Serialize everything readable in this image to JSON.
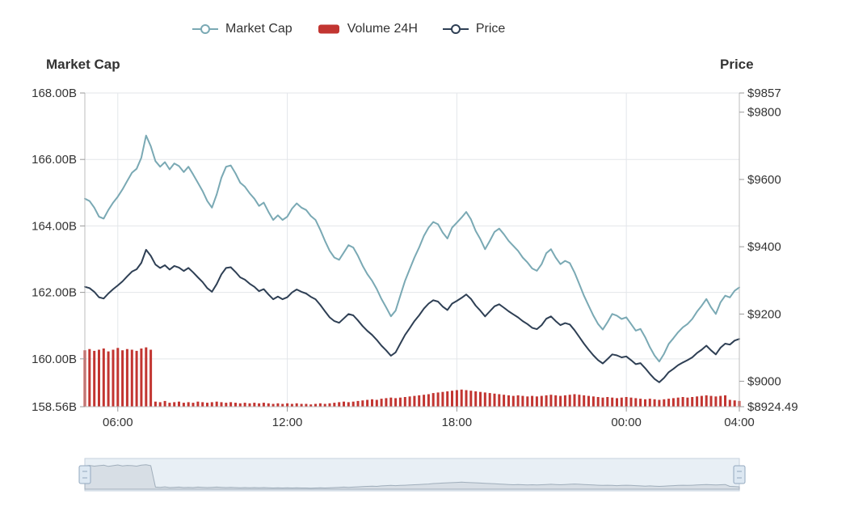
{
  "chart_data": {
    "type": "mixed",
    "x_start_hour": 4.8333,
    "x_step_hours": 0.1666667,
    "x_ticks": [
      {
        "label": "06:00",
        "hour": 6
      },
      {
        "label": "12:00",
        "hour": 12
      },
      {
        "label": "18:00",
        "hour": 18
      },
      {
        "label": "00:00",
        "hour": 24
      },
      {
        "label": "04:00",
        "hour": 28
      }
    ],
    "left_axis": {
      "title": "Market Cap",
      "range": [
        158.56,
        168.0
      ],
      "ticks": [
        {
          "label": "168.00B",
          "value": 168.0
        },
        {
          "label": "166.00B",
          "value": 166.0
        },
        {
          "label": "164.00B",
          "value": 164.0
        },
        {
          "label": "162.00B",
          "value": 162.0
        },
        {
          "label": "160.00B",
          "value": 160.0
        },
        {
          "label": "158.56B",
          "value": 158.56
        }
      ]
    },
    "right_axis": {
      "title": "Price",
      "range": [
        8924.49,
        9857
      ],
      "ticks": [
        {
          "label": "$9857",
          "value": 9857
        },
        {
          "label": "$9800",
          "value": 9800
        },
        {
          "label": "$9600",
          "value": 9600
        },
        {
          "label": "$9400",
          "value": 9400
        },
        {
          "label": "$9200",
          "value": 9200
        },
        {
          "label": "$9000",
          "value": 9000
        },
        {
          "label": "$8924.49",
          "value": 8924.49
        }
      ]
    },
    "volume_axis": {
      "range": [
        0,
        550
      ]
    },
    "series": [
      {
        "name": "Market Cap",
        "type": "line",
        "axis": "left",
        "color": "#7aa9b4",
        "values": [
          164.82,
          164.75,
          164.55,
          164.28,
          164.22,
          164.48,
          164.7,
          164.88,
          165.1,
          165.35,
          165.6,
          165.72,
          166.05,
          166.72,
          166.4,
          165.95,
          165.78,
          165.92,
          165.7,
          165.88,
          165.8,
          165.62,
          165.78,
          165.55,
          165.3,
          165.05,
          164.75,
          164.55,
          164.95,
          165.45,
          165.78,
          165.82,
          165.58,
          165.3,
          165.18,
          164.98,
          164.82,
          164.6,
          164.7,
          164.42,
          164.18,
          164.32,
          164.18,
          164.28,
          164.52,
          164.68,
          164.55,
          164.48,
          164.3,
          164.18,
          163.88,
          163.55,
          163.25,
          163.05,
          162.98,
          163.2,
          163.42,
          163.35,
          163.1,
          162.8,
          162.55,
          162.35,
          162.1,
          161.8,
          161.55,
          161.28,
          161.45,
          161.9,
          162.35,
          162.7,
          163.05,
          163.35,
          163.7,
          163.95,
          164.12,
          164.05,
          163.8,
          163.62,
          163.95,
          164.1,
          164.25,
          164.42,
          164.2,
          163.85,
          163.6,
          163.3,
          163.55,
          163.82,
          163.92,
          163.75,
          163.55,
          163.4,
          163.25,
          163.05,
          162.9,
          162.72,
          162.65,
          162.85,
          163.18,
          163.3,
          163.05,
          162.85,
          162.95,
          162.88,
          162.6,
          162.25,
          161.9,
          161.6,
          161.3,
          161.05,
          160.88,
          161.1,
          161.35,
          161.3,
          161.2,
          161.25,
          161.05,
          160.85,
          160.9,
          160.65,
          160.35,
          160.1,
          159.92,
          160.15,
          160.45,
          160.62,
          160.8,
          160.95,
          161.05,
          161.2,
          161.42,
          161.6,
          161.8,
          161.55,
          161.35,
          161.7,
          161.9,
          161.85,
          162.05,
          162.15
        ]
      },
      {
        "name": "Volume 24H",
        "type": "bar",
        "axis": "volume",
        "color": "#c23531",
        "values": [
          99,
          101,
          98,
          100,
          102,
          97,
          100,
          103,
          99,
          101,
          100,
          98,
          102,
          104,
          100,
          9,
          8,
          10,
          7,
          8,
          9,
          7,
          8,
          7,
          9,
          8,
          7,
          8,
          9,
          8,
          7,
          8,
          7,
          6,
          7,
          6,
          7,
          6,
          7,
          6,
          5,
          6,
          5,
          6,
          5,
          6,
          5,
          5,
          4,
          5,
          6,
          5,
          6,
          7,
          8,
          9,
          8,
          9,
          10,
          11,
          12,
          13,
          12,
          14,
          15,
          16,
          15,
          16,
          17,
          18,
          19,
          20,
          21,
          22,
          24,
          25,
          26,
          27,
          28,
          29,
          30,
          29,
          28,
          27,
          26,
          25,
          24,
          23,
          22,
          21,
          20,
          19,
          20,
          19,
          18,
          19,
          18,
          19,
          20,
          21,
          20,
          19,
          20,
          21,
          22,
          21,
          20,
          19,
          18,
          17,
          16,
          17,
          16,
          15,
          16,
          17,
          16,
          15,
          14,
          13,
          14,
          13,
          12,
          13,
          14,
          15,
          16,
          17,
          16,
          17,
          18,
          19,
          20,
          19,
          18,
          19,
          20,
          12,
          11,
          10
        ]
      },
      {
        "name": "Price",
        "type": "line",
        "axis": "right",
        "color": "#2e3f54",
        "values": [
          9281,
          9277,
          9266,
          9250,
          9246,
          9261,
          9274,
          9285,
          9297,
          9312,
          9326,
          9333,
          9352,
          9391,
          9373,
          9347,
          9337,
          9345,
          9332,
          9343,
          9338,
          9328,
          9337,
          9324,
          9309,
          9295,
          9277,
          9266,
          9289,
          9318,
          9337,
          9339,
          9325,
          9309,
          9302,
          9290,
          9281,
          9268,
          9274,
          9258,
          9244,
          9252,
          9244,
          9250,
          9264,
          9273,
          9266,
          9261,
          9251,
          9244,
          9227,
          9208,
          9190,
          9179,
          9174,
          9187,
          9200,
          9196,
          9181,
          9164,
          9150,
          9138,
          9123,
          9106,
          9092,
          9076,
          9086,
          9112,
          9138,
          9158,
          9179,
          9196,
          9216,
          9231,
          9241,
          9237,
          9222,
          9212,
          9231,
          9239,
          9248,
          9258,
          9245,
          9225,
          9210,
          9193,
          9208,
          9223,
          9229,
          9219,
          9208,
          9199,
          9190,
          9179,
          9170,
          9159,
          9155,
          9167,
          9186,
          9193,
          9179,
          9167,
          9173,
          9169,
          9152,
          9132,
          9112,
          9094,
          9077,
          9063,
          9053,
          9066,
          9080,
          9077,
          9071,
          9074,
          9063,
          9051,
          9054,
          9039,
          9022,
          9007,
          8997,
          9010,
          9027,
          9037,
          9048,
          9056,
          9063,
          9071,
          9084,
          9094,
          9106,
          9092,
          9080,
          9100,
          9112,
          9109,
          9121,
          9126
        ]
      }
    ]
  },
  "colors": {
    "grid": "#e3e6ea",
    "axis": "#bcbcbc",
    "tick": "#999999",
    "text": "#333333",
    "slider_bg": "#e8eff5",
    "slider_border": "#c6d2dd",
    "slider_shadow_line": "#a0aebb",
    "slider_shadow_fill": "#d7dee5",
    "slider_handle_fill": "#dde8f2",
    "slider_handle_border": "#93a8bf"
  }
}
